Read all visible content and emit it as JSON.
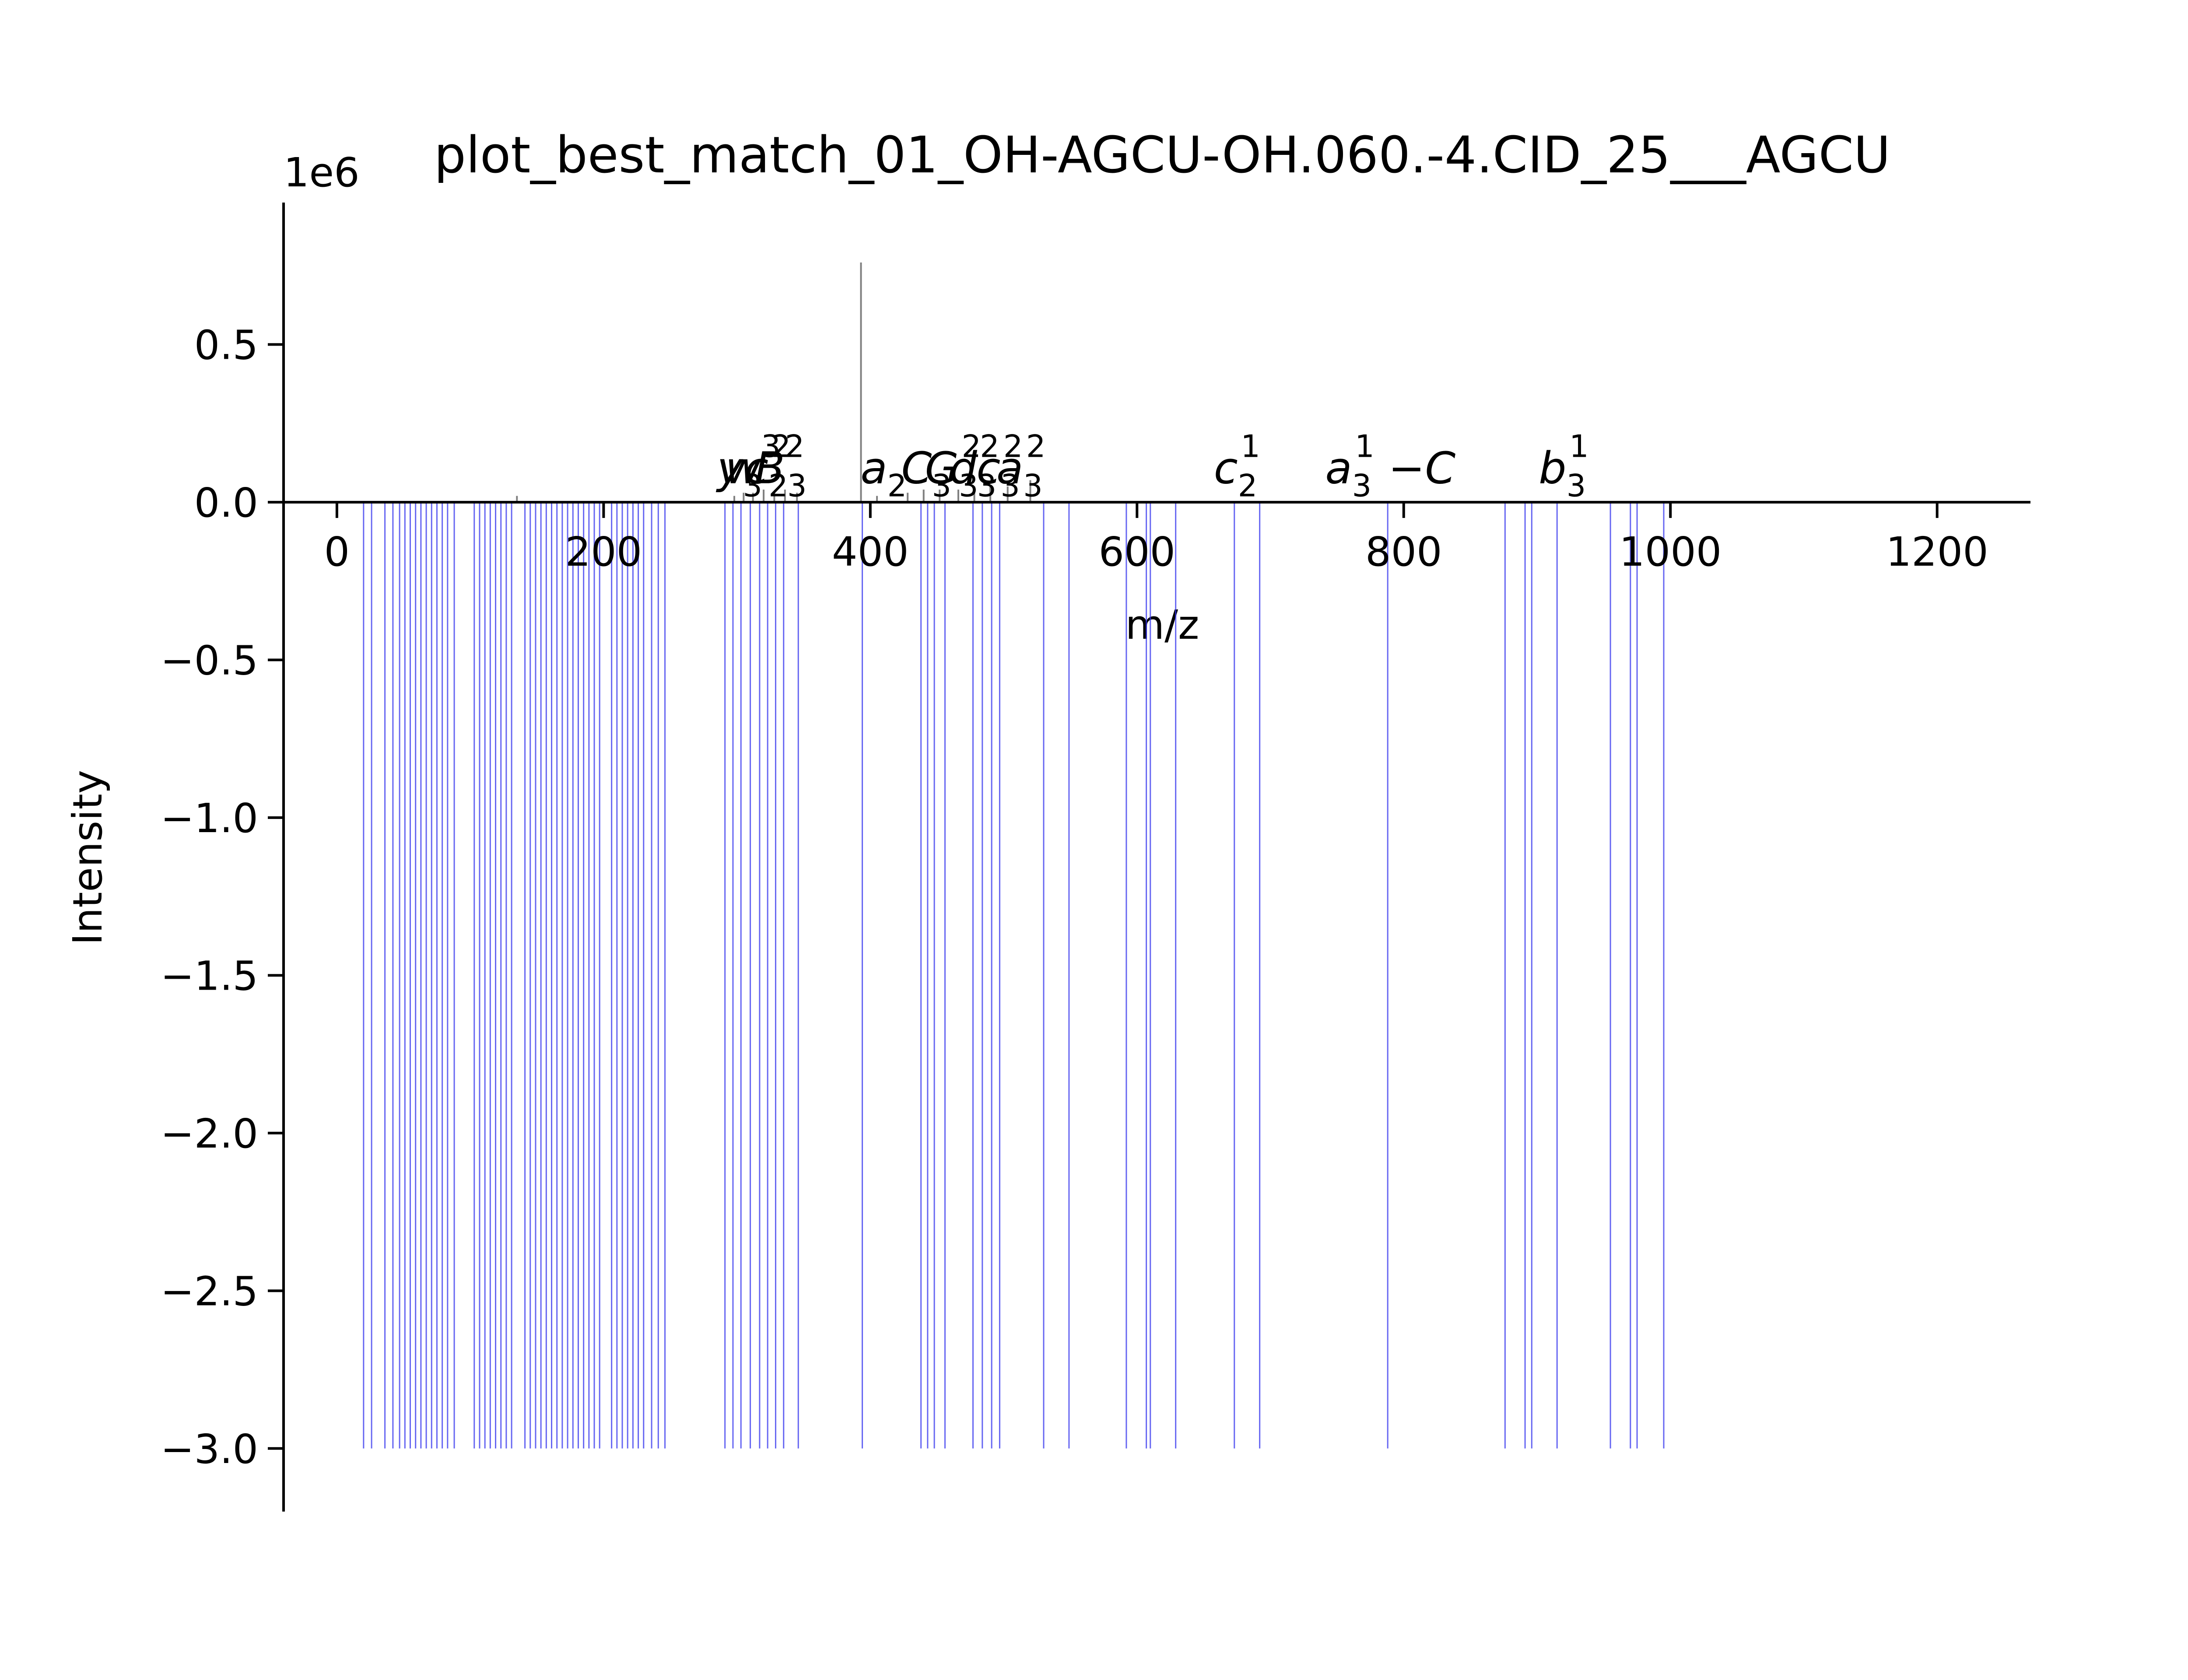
{
  "chart_data": {
    "type": "bar",
    "title": "plot_best_match_01_OH-AGCU-OH.060.-4.CID_25___AGCU",
    "xlabel": "m/z",
    "ylabel": "Intensity",
    "y_offset_label": "1e6",
    "xlim": [
      -40,
      1270
    ],
    "ylim": [
      -3.2,
      0.95
    ],
    "x_ticks": [
      0,
      200,
      400,
      600,
      800,
      1000,
      1200
    ],
    "x_tick_labels": [
      "0",
      "200",
      "400",
      "600",
      "800",
      "1000",
      "1200"
    ],
    "y_ticks": [
      0.5,
      0.0,
      -0.5,
      -1.0,
      -1.5,
      -2.0,
      -2.5,
      -3.0
    ],
    "y_tick_labels": [
      "0.5",
      "0.0",
      "−0.5",
      "−1.0",
      "−1.5",
      "−2.0",
      "−2.5",
      "−3.0"
    ],
    "grid": false,
    "colors": {
      "experimental": "#808080",
      "theoretical": "#3333ee"
    },
    "series": [
      {
        "role": "experimental",
        "x": [
          135,
          298,
          305,
          312,
          320,
          328,
          336,
          345,
          393,
          405,
          428,
          440,
          452,
          466,
          478,
          490,
          503,
          520
        ],
        "values": [
          0.02,
          0.02,
          0.03,
          0.03,
          0.04,
          0.03,
          0.04,
          0.03,
          0.76,
          0.02,
          0.03,
          0.04,
          0.04,
          0.04,
          0.05,
          0.05,
          0.05,
          0.07
        ]
      },
      {
        "role": "theoretical",
        "x": [
          20,
          26,
          36,
          42,
          47,
          51,
          55,
          59,
          63,
          67,
          71,
          75,
          79,
          83,
          88,
          103,
          107,
          111,
          115,
          119,
          123,
          127,
          131,
          141,
          145,
          149,
          153,
          157,
          161,
          165,
          169,
          173,
          177,
          181,
          185,
          189,
          193,
          197,
          206,
          210,
          214,
          218,
          222,
          226,
          230,
          236,
          241,
          246,
          291,
          297,
          303,
          310,
          317,
          323,
          329,
          335,
          346,
          394,
          438,
          443,
          448,
          456,
          477,
          484,
          491,
          497,
          530,
          549,
          592,
          607,
          610,
          629,
          673,
          692,
          788,
          876,
          891,
          896,
          915,
          955,
          970,
          975,
          995
        ],
        "value": -3.0
      }
    ],
    "annotations": [
      {
        "x": 302,
        "y": 0.06,
        "base": "y",
        "sup": "",
        "sub": "3"
      },
      {
        "x": 312,
        "y": 0.06,
        "base": "w",
        "sup": "3",
        "sub": ""
      },
      {
        "x": 323,
        "y": 0.06,
        "base": "c",
        "sup": "2",
        "sub": "2"
      },
      {
        "x": 332,
        "y": 0.06,
        "base": "B",
        "sup": "2",
        "sub": ""
      },
      {
        "x": 345,
        "y": 0.06,
        "base": "",
        "sup": "",
        "sub": "3"
      },
      {
        "x": 410,
        "y": 0.06,
        "base": "a",
        "sup": "",
        "sub": "2"
      },
      {
        "x": 442,
        "y": 0.06,
        "base": "C",
        "sup": "",
        "sub": "3"
      },
      {
        "x": 462,
        "y": 0.06,
        "base": "G",
        "sup": "2",
        "sub": "3"
      },
      {
        "x": 478,
        "y": 0.06,
        "base": "d",
        "sup": "2",
        "sub": "3"
      },
      {
        "x": 497,
        "y": 0.06,
        "base": "c",
        "sup": "2",
        "sub": "3"
      },
      {
        "x": 513,
        "y": 0.06,
        "base": "a",
        "sup": "2",
        "sub": "3"
      },
      {
        "x": 675,
        "y": 0.06,
        "base": "c",
        "sup": "1",
        "sub": "2"
      },
      {
        "x": 790,
        "y": 0.06,
        "base": "a",
        "sup": "1",
        "sub": "3",
        "suffix": "−C"
      },
      {
        "x": 920,
        "y": 0.06,
        "base": "b",
        "sup": "1",
        "sub": "3"
      }
    ]
  }
}
